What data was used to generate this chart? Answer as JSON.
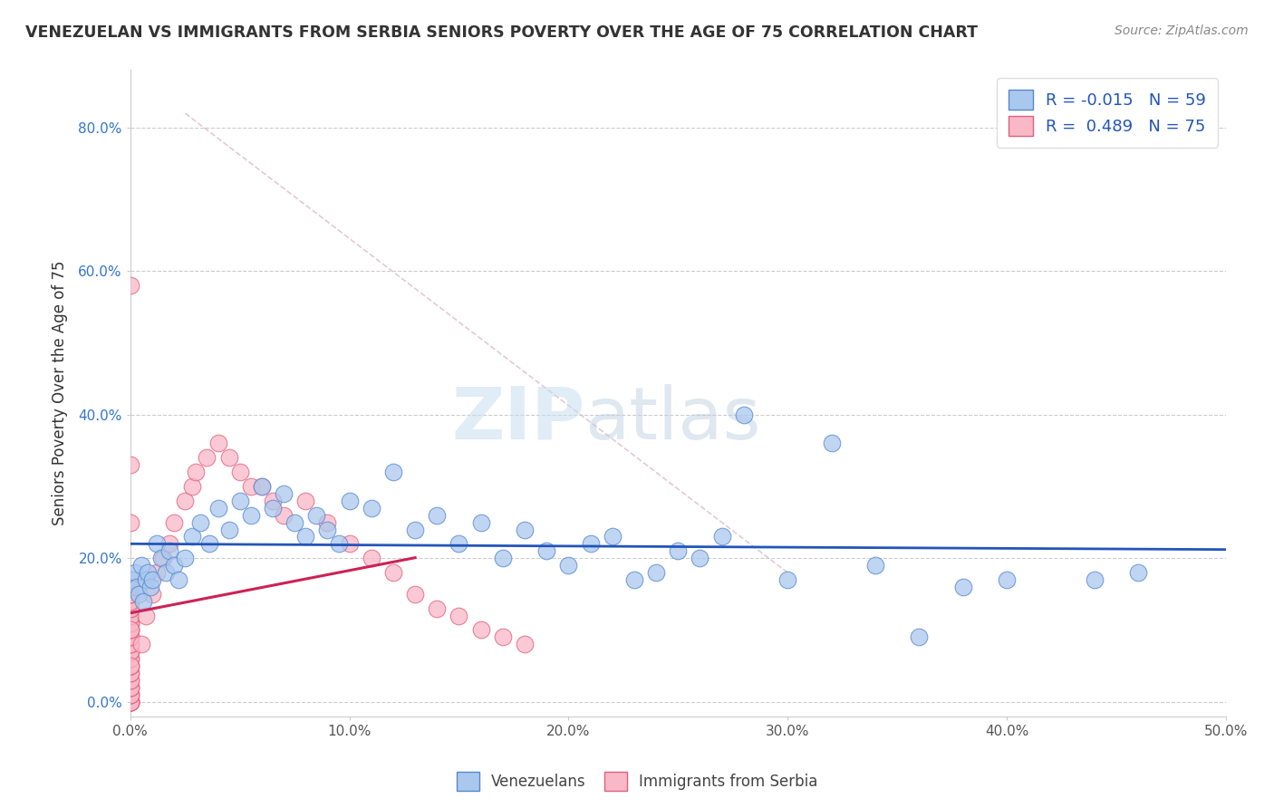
{
  "title": "VENEZUELAN VS IMMIGRANTS FROM SERBIA SENIORS POVERTY OVER THE AGE OF 75 CORRELATION CHART",
  "source": "Source: ZipAtlas.com",
  "ylabel": "Seniors Poverty Over the Age of 75",
  "xlim": [
    0.0,
    0.5
  ],
  "ylim": [
    -0.02,
    0.88
  ],
  "xticks": [
    0.0,
    0.1,
    0.2,
    0.3,
    0.4,
    0.5
  ],
  "xtick_labels": [
    "0.0%",
    "10.0%",
    "20.0%",
    "30.0%",
    "40.0%",
    "50.0%"
  ],
  "yticks": [
    0.0,
    0.2,
    0.4,
    0.6,
    0.8
  ],
  "ytick_labels": [
    "0.0%",
    "20.0%",
    "40.0%",
    "60.0%",
    "80.0%"
  ],
  "venezuelan_color": "#aac8ee",
  "venezuelan_edge": "#5588cc",
  "serbian_color": "#f9b8c8",
  "serbian_edge": "#e0607a",
  "trend_venezuelan_color": "#2255bb",
  "trend_serbian_color": "#cc2255",
  "R_venezuelan": -0.015,
  "N_venezuelan": 59,
  "R_serbian": 0.489,
  "N_serbian": 75,
  "watermark_zip": "ZIP",
  "watermark_atlas": "atlas",
  "background_color": "#ffffff",
  "venezuelan_x": [
    0.001,
    0.002,
    0.003,
    0.004,
    0.005,
    0.006,
    0.007,
    0.008,
    0.009,
    0.01,
    0.012,
    0.014,
    0.016,
    0.018,
    0.02,
    0.022,
    0.025,
    0.028,
    0.032,
    0.036,
    0.04,
    0.045,
    0.05,
    0.055,
    0.06,
    0.065,
    0.07,
    0.075,
    0.08,
    0.085,
    0.09,
    0.095,
    0.1,
    0.11,
    0.12,
    0.13,
    0.14,
    0.15,
    0.16,
    0.17,
    0.18,
    0.19,
    0.2,
    0.21,
    0.22,
    0.23,
    0.24,
    0.25,
    0.26,
    0.27,
    0.28,
    0.3,
    0.32,
    0.34,
    0.36,
    0.38,
    0.4,
    0.44,
    0.46
  ],
  "venezuelan_y": [
    0.17,
    0.18,
    0.16,
    0.15,
    0.19,
    0.14,
    0.17,
    0.18,
    0.16,
    0.17,
    0.22,
    0.2,
    0.18,
    0.21,
    0.19,
    0.17,
    0.2,
    0.23,
    0.25,
    0.22,
    0.27,
    0.24,
    0.28,
    0.26,
    0.3,
    0.27,
    0.29,
    0.25,
    0.23,
    0.26,
    0.24,
    0.22,
    0.28,
    0.27,
    0.32,
    0.24,
    0.26,
    0.22,
    0.25,
    0.2,
    0.24,
    0.21,
    0.19,
    0.22,
    0.23,
    0.17,
    0.18,
    0.21,
    0.2,
    0.23,
    0.4,
    0.17,
    0.36,
    0.19,
    0.09,
    0.16,
    0.17,
    0.17,
    0.18
  ],
  "serbian_x": [
    0.0,
    0.0,
    0.0,
    0.0,
    0.0,
    0.0,
    0.0,
    0.0,
    0.0,
    0.0,
    0.0,
    0.0,
    0.0,
    0.0,
    0.0,
    0.0,
    0.0,
    0.0,
    0.0,
    0.0,
    0.0,
    0.0,
    0.0,
    0.0,
    0.0,
    0.0,
    0.0,
    0.0,
    0.0,
    0.0,
    0.0,
    0.0,
    0.0,
    0.0,
    0.0,
    0.0,
    0.0,
    0.0,
    0.0,
    0.0,
    0.005,
    0.007,
    0.01,
    0.012,
    0.015,
    0.018,
    0.02,
    0.025,
    0.028,
    0.03,
    0.035,
    0.04,
    0.045,
    0.05,
    0.055,
    0.06,
    0.065,
    0.07,
    0.08,
    0.09,
    0.1,
    0.11,
    0.12,
    0.13,
    0.14,
    0.15,
    0.16,
    0.17,
    0.18,
    0.0,
    0.0,
    0.0,
    0.0,
    0.0,
    0.0
  ],
  "serbian_y": [
    0.0,
    0.0,
    0.0,
    0.0,
    0.0,
    0.0,
    0.0,
    0.01,
    0.01,
    0.01,
    0.02,
    0.02,
    0.02,
    0.03,
    0.03,
    0.04,
    0.04,
    0.05,
    0.05,
    0.06,
    0.06,
    0.07,
    0.07,
    0.08,
    0.08,
    0.09,
    0.09,
    0.1,
    0.1,
    0.11,
    0.11,
    0.12,
    0.12,
    0.13,
    0.13,
    0.14,
    0.14,
    0.15,
    0.15,
    0.16,
    0.08,
    0.12,
    0.15,
    0.18,
    0.2,
    0.22,
    0.25,
    0.28,
    0.3,
    0.32,
    0.34,
    0.36,
    0.34,
    0.32,
    0.3,
    0.3,
    0.28,
    0.26,
    0.28,
    0.25,
    0.22,
    0.2,
    0.18,
    0.15,
    0.13,
    0.12,
    0.1,
    0.09,
    0.08,
    0.58,
    0.33,
    0.25,
    0.17,
    0.1,
    0.05
  ],
  "serbian_trend_x1": 0.0,
  "serbian_trend_x2": 0.13,
  "dashed_line_x": [
    0.025,
    0.3
  ],
  "dashed_line_y": [
    0.82,
    0.18
  ]
}
